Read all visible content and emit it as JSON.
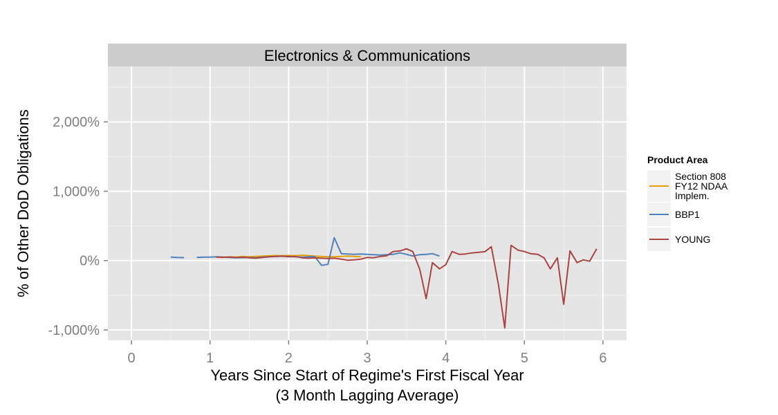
{
  "chart_data": {
    "type": "line",
    "title": "Electronics & Communications",
    "xlabel": "Years Since Start of Regime's First Fiscal Year",
    "xlabel_line2": "(3 Month Lagging Average)",
    "ylabel": "% of Other DoD Obligations",
    "xlim": [
      -0.3,
      6.3
    ],
    "ylim": [
      -1150,
      2800
    ],
    "x_ticks": [
      0,
      1,
      2,
      3,
      4,
      5,
      6
    ],
    "x_tick_labels": [
      "0",
      "1",
      "2",
      "3",
      "4",
      "5",
      "6"
    ],
    "y_ticks": [
      -1000,
      0,
      1000,
      2000
    ],
    "y_tick_labels": [
      "-1,000%",
      "0%",
      "1,000%",
      "2,000%"
    ],
    "grid": true,
    "legend": {
      "title": "Product Area",
      "position": "right"
    },
    "series": [
      {
        "name": "Section 808\nFY12 NDAA\nImplem.",
        "color": "#e69f00",
        "segments": [
          [
            [
              1.08,
              50
            ],
            [
              1.17,
              45
            ],
            [
              1.25,
              55
            ],
            [
              1.33,
              50
            ],
            [
              1.42,
              60
            ],
            [
              1.5,
              55
            ],
            [
              1.58,
              60
            ],
            [
              1.67,
              65
            ],
            [
              1.75,
              70
            ],
            [
              1.83,
              72
            ],
            [
              1.92,
              70
            ],
            [
              2.0,
              75
            ],
            [
              2.08,
              70
            ],
            [
              2.17,
              78
            ],
            [
              2.25,
              72
            ],
            [
              2.33,
              65
            ],
            [
              2.42,
              60
            ],
            [
              2.5,
              55
            ],
            [
              2.58,
              55
            ],
            [
              2.67,
              60
            ],
            [
              2.75,
              65
            ],
            [
              2.83,
              60
            ],
            [
              2.92,
              55
            ]
          ]
        ]
      },
      {
        "name": "BBP1",
        "color": "#4f81bd",
        "segments": [
          [
            [
              0.5,
              50
            ],
            [
              0.58,
              45
            ],
            [
              0.67,
              42
            ]
          ],
          [
            [
              0.83,
              45
            ],
            [
              0.92,
              50
            ],
            [
              1.0,
              50
            ],
            [
              1.08,
              55
            ],
            [
              1.17,
              50
            ],
            [
              1.25,
              45
            ],
            [
              1.33,
              40
            ],
            [
              1.42,
              42
            ],
            [
              1.5,
              45
            ],
            [
              1.58,
              40
            ],
            [
              1.67,
              50
            ],
            [
              1.75,
              55
            ],
            [
              1.83,
              60
            ],
            [
              1.92,
              62
            ],
            [
              2.0,
              60
            ],
            [
              2.08,
              55
            ],
            [
              2.17,
              50
            ],
            [
              2.25,
              55
            ],
            [
              2.33,
              60
            ],
            [
              2.42,
              -70
            ],
            [
              2.5,
              -55
            ],
            [
              2.58,
              330
            ],
            [
              2.67,
              100
            ],
            [
              2.75,
              95
            ],
            [
              2.83,
              90
            ],
            [
              2.92,
              95
            ],
            [
              3.0,
              90
            ],
            [
              3.08,
              85
            ],
            [
              3.17,
              80
            ],
            [
              3.25,
              85
            ],
            [
              3.33,
              90
            ],
            [
              3.42,
              110
            ],
            [
              3.5,
              90
            ],
            [
              3.58,
              65
            ],
            [
              3.67,
              85
            ],
            [
              3.75,
              90
            ],
            [
              3.83,
              100
            ],
            [
              3.92,
              65
            ]
          ]
        ]
      },
      {
        "name": "YOUNG",
        "color": "#a94442",
        "segments": [
          [
            [
              1.08,
              50
            ],
            [
              1.17,
              48
            ],
            [
              1.25,
              50
            ],
            [
              1.33,
              45
            ],
            [
              1.42,
              48
            ],
            [
              1.5,
              40
            ],
            [
              1.58,
              35
            ],
            [
              1.67,
              45
            ],
            [
              1.75,
              55
            ],
            [
              1.83,
              60
            ],
            [
              1.92,
              65
            ],
            [
              2.0,
              55
            ],
            [
              2.08,
              60
            ],
            [
              2.17,
              40
            ],
            [
              2.25,
              35
            ],
            [
              2.33,
              40
            ],
            [
              2.42,
              35
            ],
            [
              2.5,
              30
            ],
            [
              2.58,
              35
            ],
            [
              2.67,
              20
            ],
            [
              2.75,
              5
            ],
            [
              2.83,
              10
            ],
            [
              2.92,
              20
            ],
            [
              3.0,
              45
            ],
            [
              3.08,
              40
            ],
            [
              3.17,
              60
            ],
            [
              3.25,
              70
            ],
            [
              3.33,
              130
            ],
            [
              3.42,
              140
            ],
            [
              3.5,
              170
            ],
            [
              3.58,
              130
            ],
            [
              3.67,
              -130
            ],
            [
              3.75,
              -550
            ],
            [
              3.83,
              -30
            ],
            [
              3.92,
              -120
            ],
            [
              4.0,
              -60
            ],
            [
              4.08,
              130
            ],
            [
              4.17,
              90
            ],
            [
              4.25,
              95
            ],
            [
              4.33,
              110
            ],
            [
              4.42,
              120
            ],
            [
              4.5,
              130
            ],
            [
              4.58,
              200
            ],
            [
              4.67,
              -350
            ],
            [
              4.75,
              -970
            ],
            [
              4.83,
              220
            ],
            [
              4.92,
              150
            ],
            [
              5.0,
              130
            ],
            [
              5.08,
              100
            ],
            [
              5.17,
              90
            ],
            [
              5.25,
              40
            ],
            [
              5.33,
              -120
            ],
            [
              5.42,
              40
            ],
            [
              5.5,
              -630
            ],
            [
              5.58,
              140
            ],
            [
              5.67,
              -30
            ],
            [
              5.75,
              10
            ],
            [
              5.83,
              -10
            ],
            [
              5.92,
              170
            ]
          ]
        ]
      }
    ]
  }
}
